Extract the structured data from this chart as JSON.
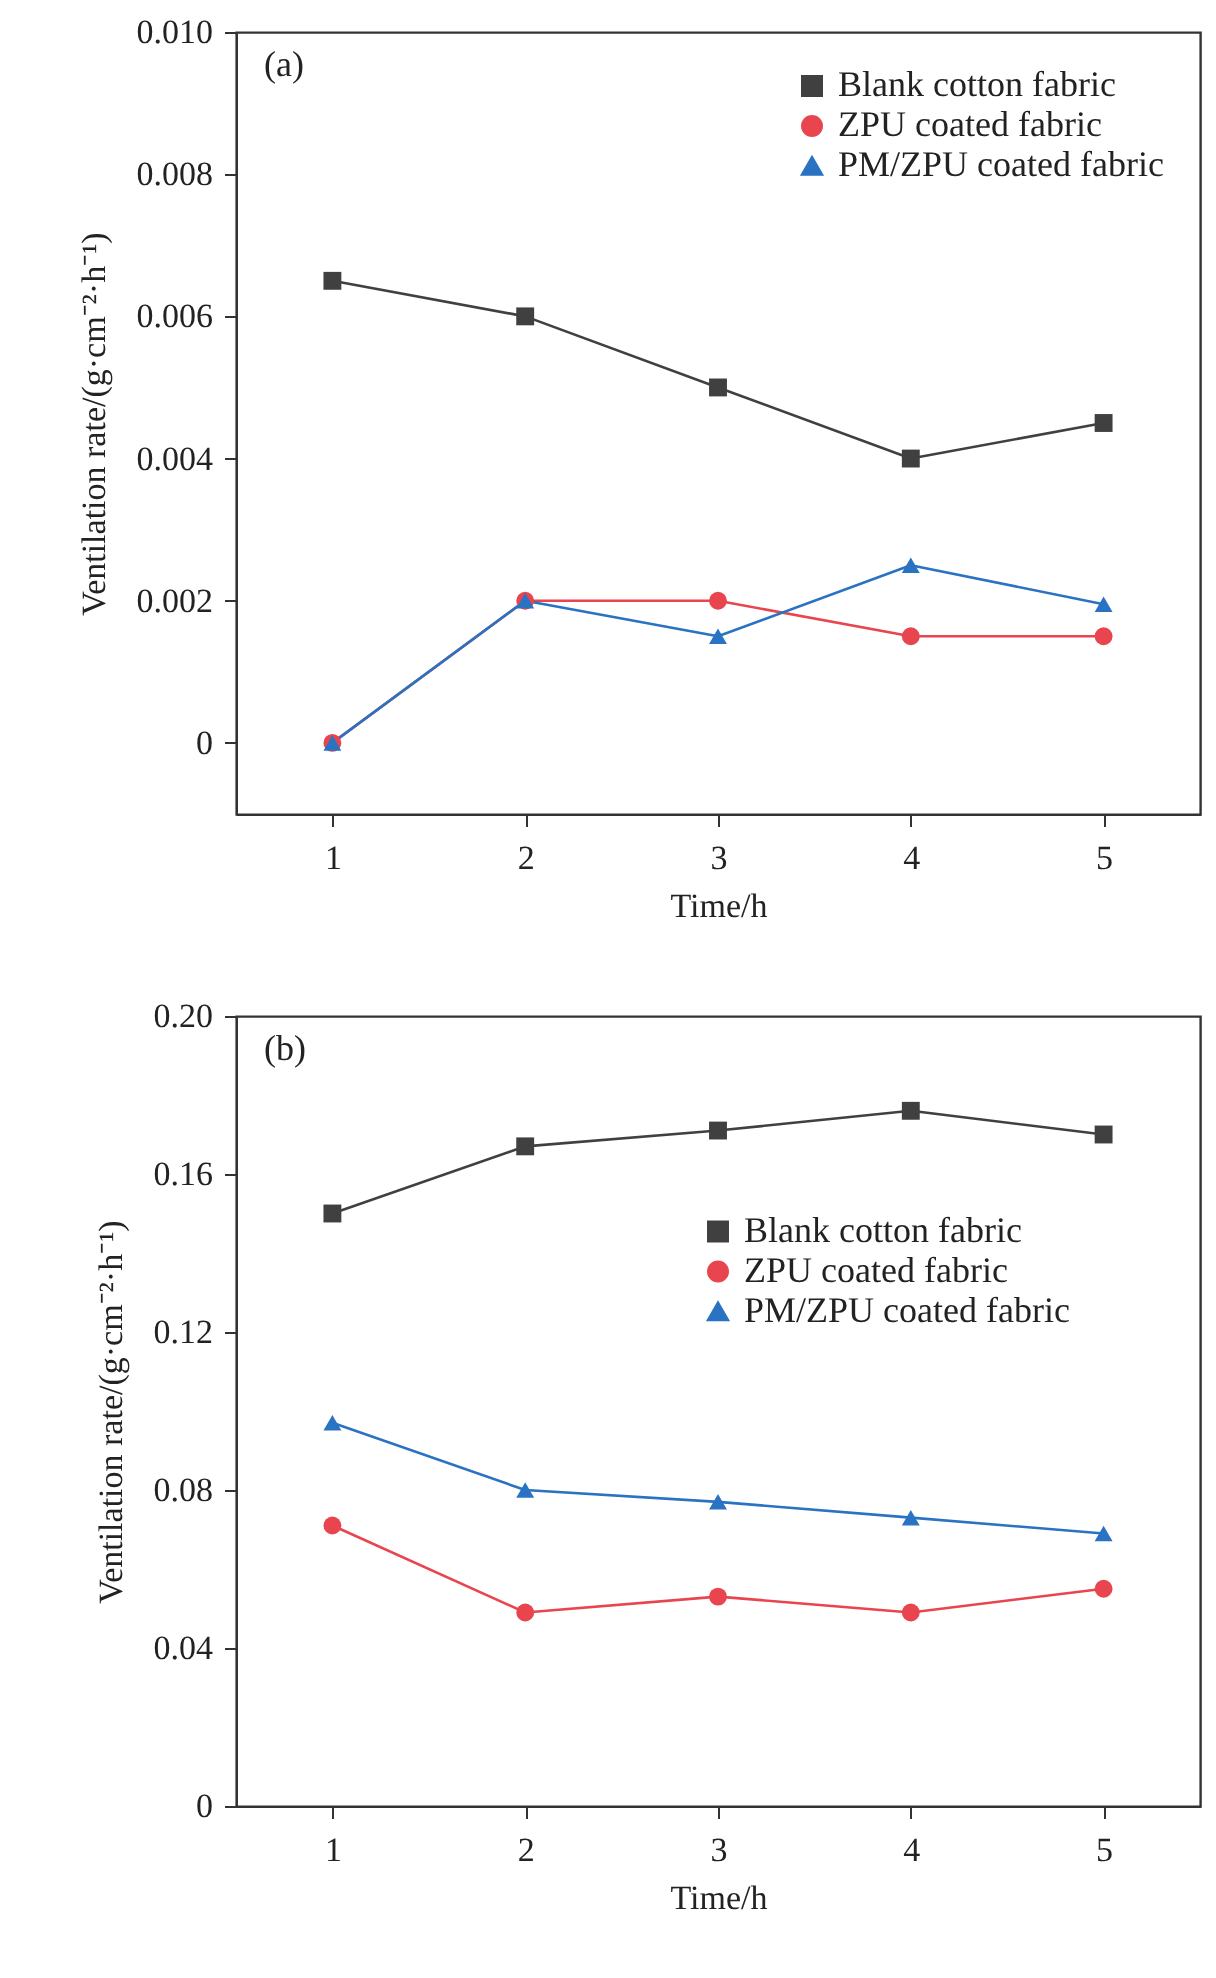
{
  "chart_data": [
    {
      "type": "line",
      "annotations": [
        "(a)"
      ],
      "xlabel": "Time/h",
      "ylabel": "Ventilation rate/(g·cm⁻²·h⁻¹)",
      "x": [
        1,
        2,
        3,
        4,
        5
      ],
      "xlim": [
        0.5,
        5.5
      ],
      "xticks": [
        1,
        2,
        3,
        4,
        5
      ],
      "ylim": [
        -0.001,
        0.01
      ],
      "yticks": [
        0,
        0.002,
        0.004,
        0.006,
        0.008,
        {
          "value": 0.01,
          "label": "0.010"
        }
      ],
      "grid": false,
      "legend": "top right",
      "line_style": "solid",
      "series": [
        {
          "name": "Blank cotton fabric",
          "color": "#404040",
          "marker": "square",
          "values": [
            0.0065,
            0.006,
            0.005,
            0.004,
            0.0045
          ]
        },
        {
          "name": "ZPU coated fabric",
          "color": "#e8454f",
          "marker": "circle",
          "values": [
            0,
            0.002,
            0.002,
            0.0015,
            0.0015
          ]
        },
        {
          "name": "PM/ZPU coated fabric",
          "color": "#2a72c2",
          "marker": "triangle",
          "values": [
            0,
            0.002,
            0.0015,
            0.0025,
            0.00195
          ]
        }
      ]
    },
    {
      "type": "line",
      "annotations": [
        "(b)"
      ],
      "xlabel": "Time/h",
      "ylabel": "Ventilation rate/(g·cm⁻²·h⁻¹)",
      "x": [
        1,
        2,
        3,
        4,
        5
      ],
      "xlim": [
        0.5,
        5.5
      ],
      "xticks": [
        1,
        2,
        3,
        4,
        5
      ],
      "ylim": [
        0,
        0.2
      ],
      "yticks": [
        0,
        0.04,
        0.08,
        0.12,
        0.16,
        {
          "value": 0.2,
          "label": "0.20"
        }
      ],
      "grid": false,
      "legend": "right",
      "line_style": "solid",
      "series": [
        {
          "name": "Blank cotton fabric",
          "color": "#404040",
          "marker": "square",
          "values": [
            0.15,
            0.167,
            0.171,
            0.176,
            0.17
          ]
        },
        {
          "name": "ZPU coated fabric",
          "color": "#e8454f",
          "marker": "circle",
          "values": [
            0.071,
            0.049,
            0.053,
            0.049,
            0.055
          ]
        },
        {
          "name": "PM/ZPU coated fabric",
          "color": "#2a72c2",
          "marker": "triangle",
          "values": [
            0.097,
            0.08,
            0.077,
            0.073,
            0.069
          ]
        }
      ]
    }
  ]
}
